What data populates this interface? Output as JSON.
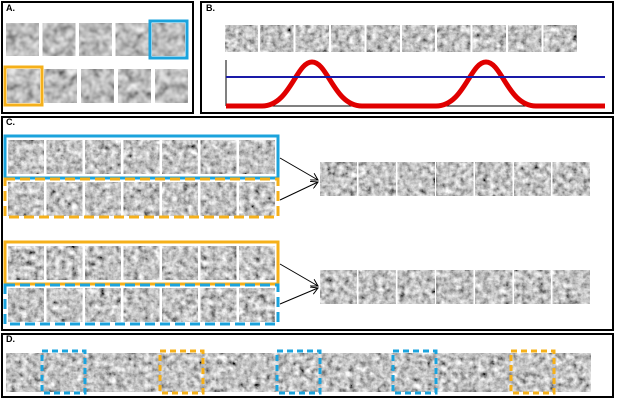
{
  "panels": {
    "a": {
      "label": "A."
    },
    "b": {
      "label": "B."
    },
    "c": {
      "label": "C."
    },
    "d": {
      "label": "D."
    }
  }
}
